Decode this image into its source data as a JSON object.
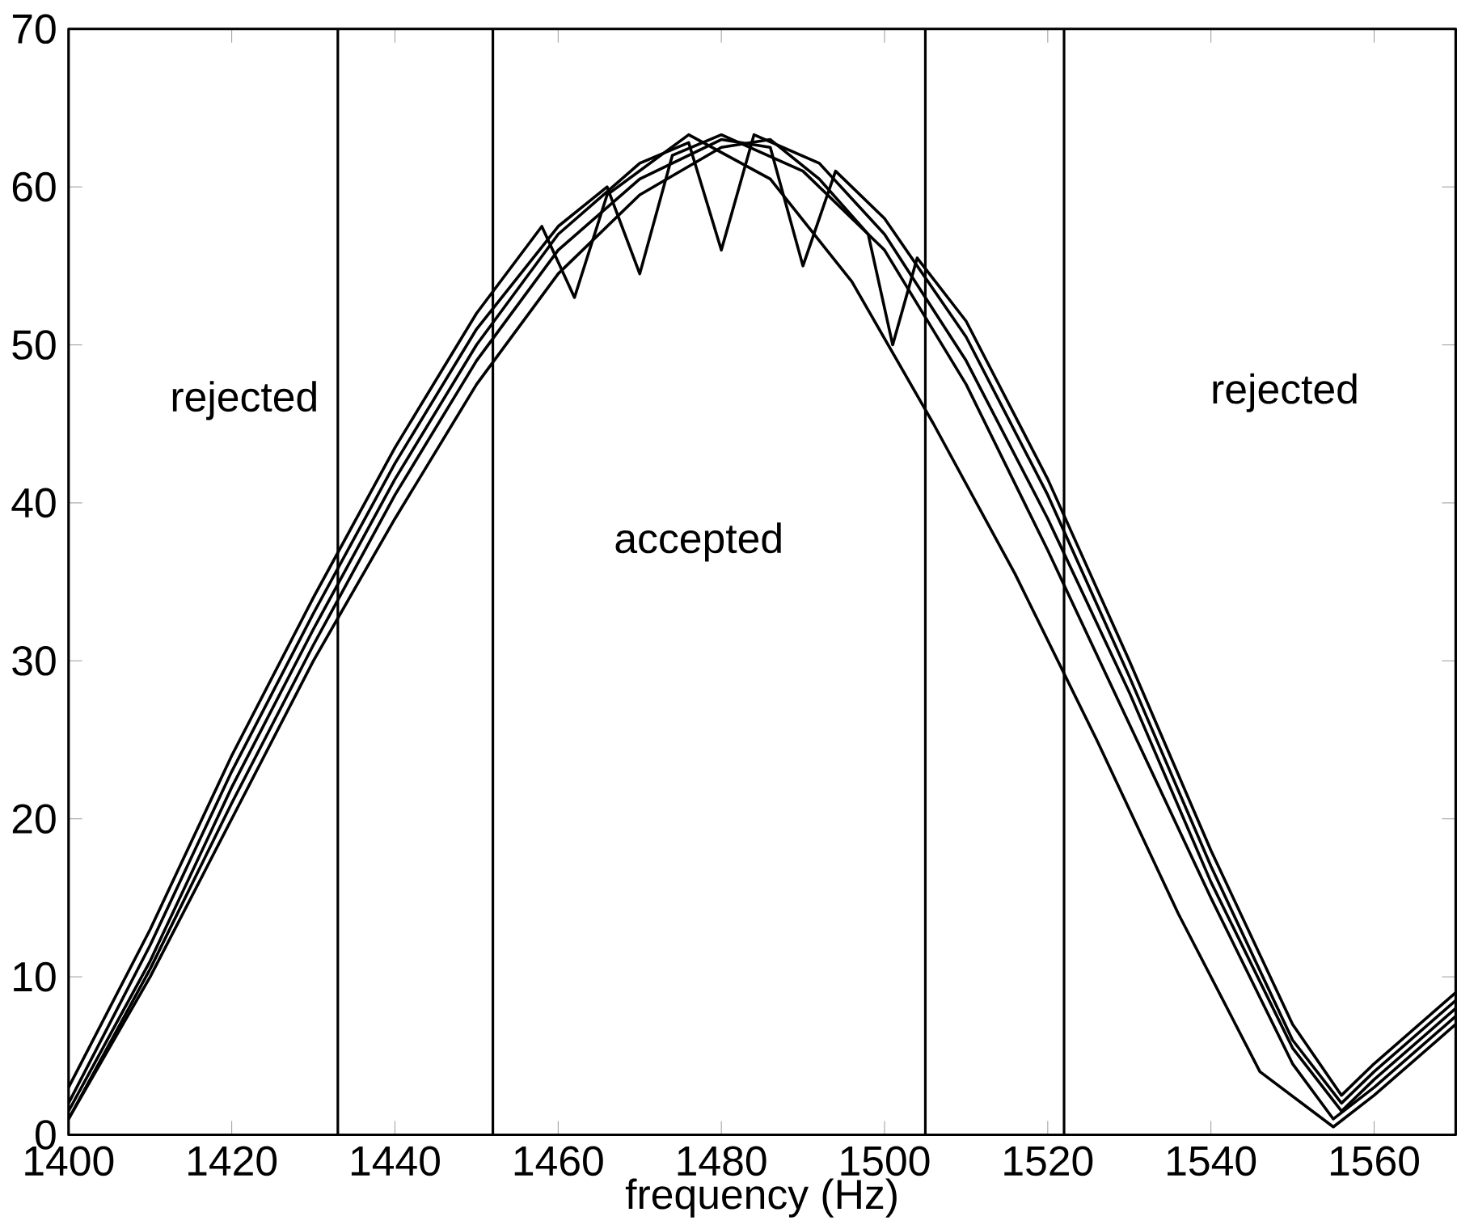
{
  "chart_data": {
    "type": "line",
    "xlabel": "frequency (Hz)",
    "xlim": [
      1400,
      1570
    ],
    "ylim": [
      0,
      70
    ],
    "xticks": [
      1400,
      1420,
      1440,
      1460,
      1480,
      1500,
      1520,
      1540,
      1560
    ],
    "yticks": [
      0,
      10,
      20,
      30,
      40,
      50,
      60,
      70
    ],
    "grid": false,
    "marker": "none",
    "line_style": "solid",
    "series": [
      {
        "color": "#000000",
        "x": [
          1400,
          1410,
          1420,
          1430,
          1440,
          1450,
          1458,
          1462,
          1466,
          1476,
          1486,
          1496,
          1506,
          1516,
          1526,
          1536,
          1546,
          1555,
          1560,
          1570
        ],
        "values": [
          3,
          13,
          24,
          34,
          43.5,
          52,
          57.5,
          53,
          59.5,
          63.3,
          60.5,
          54,
          45,
          35.5,
          25,
          14,
          4,
          0.5,
          2.5,
          7
        ]
      },
      {
        "color": "#000000",
        "x": [
          1400,
          1410,
          1420,
          1430,
          1440,
          1450,
          1460,
          1466,
          1470,
          1474,
          1480,
          1490,
          1500,
          1510,
          1520,
          1530,
          1540,
          1550,
          1555,
          1560,
          1570
        ],
        "values": [
          2,
          12,
          23,
          33,
          42.5,
          51,
          57.5,
          60,
          54.5,
          62,
          63.3,
          61,
          56,
          47.5,
          37,
          26,
          15,
          4.5,
          1,
          3,
          7.5
        ]
      },
      {
        "color": "#000000",
        "x": [
          1400,
          1410,
          1420,
          1430,
          1440,
          1450,
          1460,
          1470,
          1476,
          1480,
          1484,
          1492,
          1500,
          1510,
          1520,
          1530,
          1540,
          1550,
          1556,
          1560,
          1570
        ],
        "values": [
          1.5,
          11,
          22,
          32,
          41.5,
          50,
          57,
          61.5,
          62.8,
          56,
          63.3,
          61.5,
          57,
          49,
          39,
          28,
          16,
          5.5,
          1.5,
          3.5,
          8
        ]
      },
      {
        "color": "#000000",
        "x": [
          1400,
          1410,
          1420,
          1430,
          1440,
          1450,
          1460,
          1470,
          1480,
          1486,
          1490,
          1494,
          1500,
          1510,
          1520,
          1530,
          1540,
          1550,
          1556,
          1560,
          1570
        ],
        "values": [
          1,
          10.5,
          21,
          31,
          40.5,
          49,
          56,
          60.5,
          63,
          62.5,
          55,
          61,
          58,
          50.5,
          40.5,
          29,
          17,
          6,
          2,
          4,
          8.5
        ]
      },
      {
        "color": "#000000",
        "x": [
          1400,
          1410,
          1420,
          1430,
          1440,
          1450,
          1460,
          1470,
          1480,
          1486,
          1492,
          1498,
          1501,
          1504,
          1510,
          1520,
          1530,
          1540,
          1550,
          1556,
          1560,
          1570
        ],
        "values": [
          1,
          10,
          20,
          30,
          39,
          47.5,
          54.5,
          59.5,
          62.5,
          63,
          60.5,
          57,
          50,
          55.5,
          51.5,
          41.5,
          30,
          18,
          7,
          2.5,
          4.5,
          9
        ]
      }
    ],
    "ref_lines": [
      {
        "axis": "x",
        "value": 1433,
        "color": "#000000",
        "line_style": "solid"
      },
      {
        "axis": "x",
        "value": 1452,
        "color": "#000000",
        "line_style": "solid"
      },
      {
        "axis": "x",
        "value": 1505,
        "color": "#000000",
        "line_style": "solid"
      },
      {
        "axis": "x",
        "value": 1522,
        "color": "#000000",
        "line_style": "solid"
      }
    ],
    "annotations": [
      "rejected",
      "accepted",
      "rejected"
    ]
  }
}
